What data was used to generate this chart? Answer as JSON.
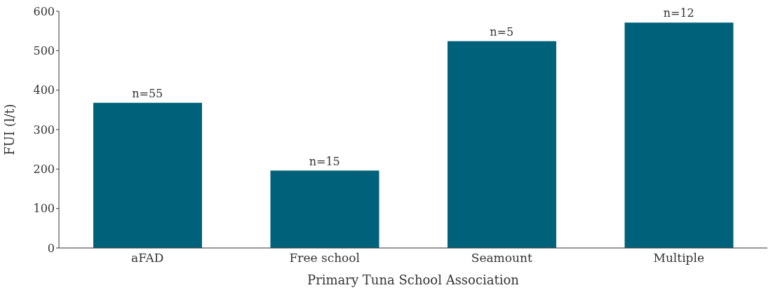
{
  "chart_data": {
    "type": "bar",
    "xlabel": "Primary Tuna School Association",
    "ylabel": "FUI (l/t)",
    "categories": [
      "aFAD",
      "Free school",
      "Seamount",
      "Multiple"
    ],
    "values": [
      368,
      196,
      524,
      571
    ],
    "color": "#00627a",
    "annotations": [
      {
        "text": "n=55",
        "x": "aFAD",
        "y": 368
      },
      {
        "text": "n=15",
        "x": "Free school",
        "y": 196
      },
      {
        "text": "n=5",
        "x": "Seamount",
        "y": 524
      },
      {
        "text": "n=12",
        "x": "Multiple",
        "y": 571
      }
    ],
    "ylim": [
      0,
      600
    ],
    "yticks": [
      0,
      100,
      200,
      300,
      400,
      500,
      600
    ],
    "grid": false
  }
}
